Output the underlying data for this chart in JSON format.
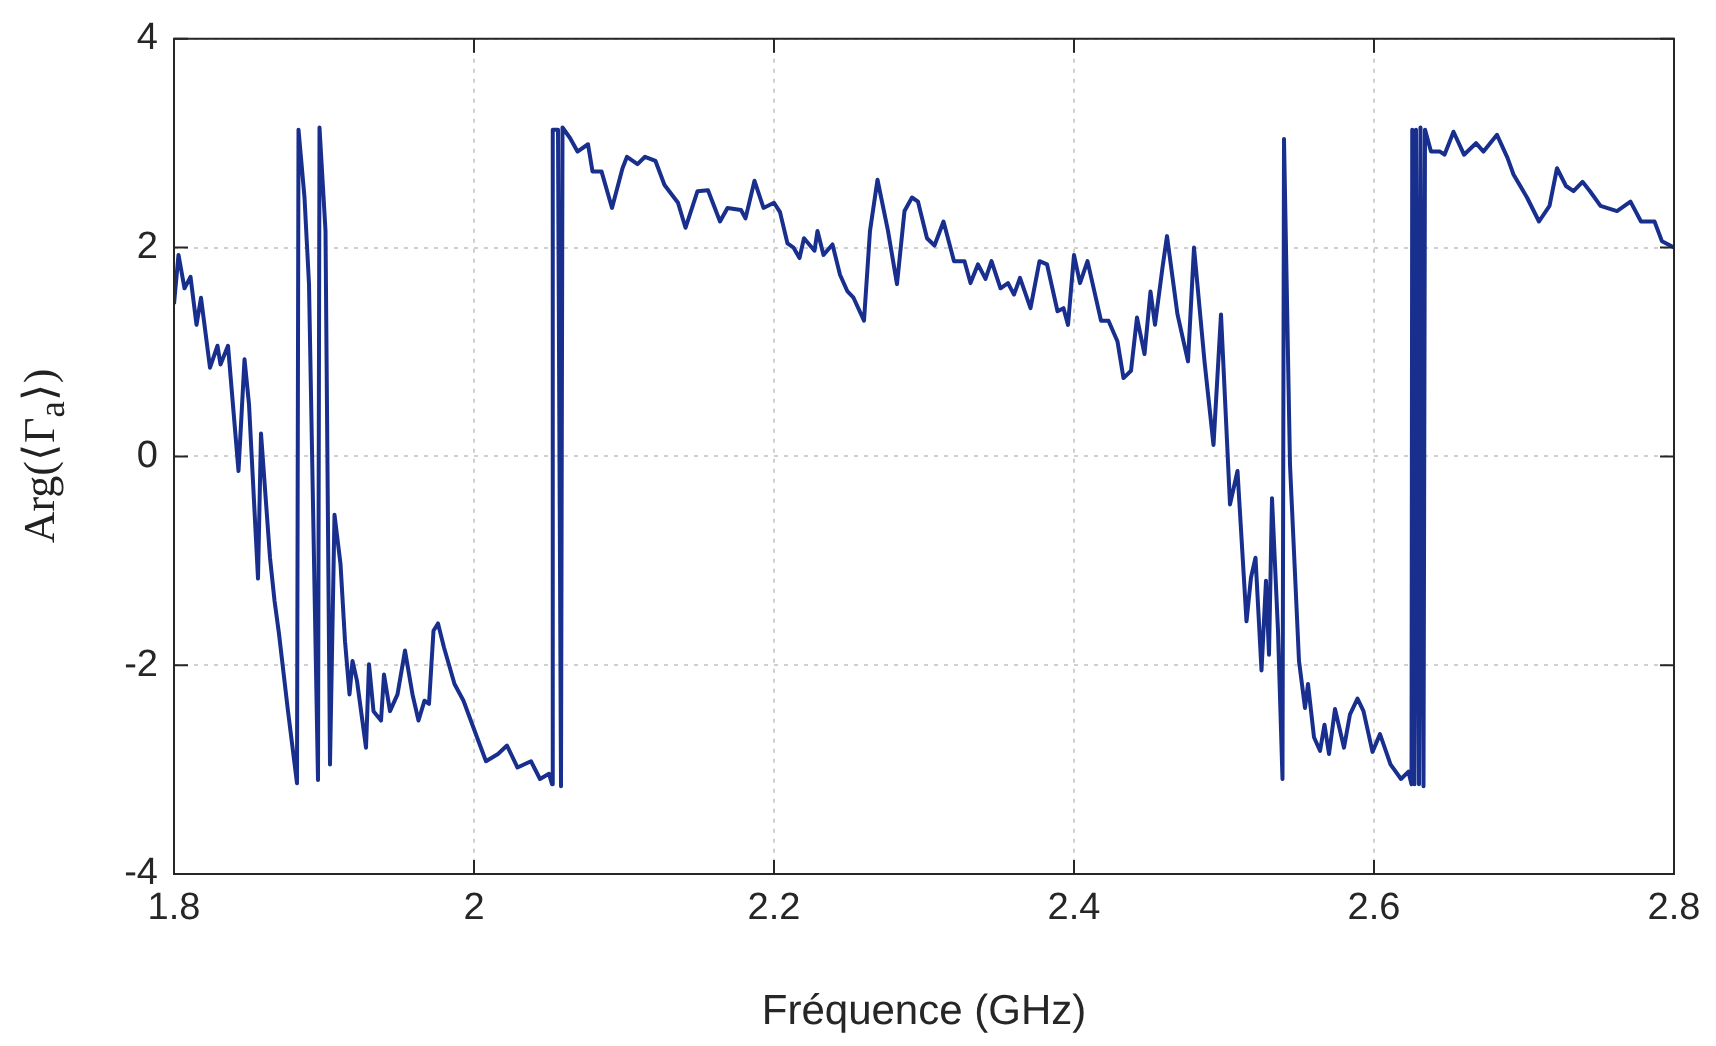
{
  "chart_data": {
    "type": "line",
    "xlabel": "Fréquence (GHz)",
    "ylabel": "Arg(⟨Γ$_{a}$⟩)",
    "xlim": [
      1.8,
      2.8
    ],
    "xticks": [
      1.8,
      2,
      2.2,
      2.4,
      2.6,
      2.8
    ],
    "ylim": [
      -4,
      4
    ],
    "yticks": [
      -4,
      -2,
      0,
      2,
      4
    ],
    "grid": true,
    "legend": false,
    "marker": "none",
    "line_style": "solid",
    "series": [
      {
        "color": "#182f8e",
        "x": [
          1.8,
          1.803,
          1.807,
          1.811,
          1.815,
          1.818,
          1.824,
          1.829,
          1.831,
          1.836,
          1.843,
          1.847,
          1.85,
          1.856,
          1.858,
          1.864,
          1.867,
          1.87,
          1.876,
          1.882,
          1.883,
          1.887,
          1.89,
          1.896,
          1.897,
          1.901,
          1.904,
          1.907,
          1.911,
          1.914,
          1.917,
          1.919,
          1.922,
          1.928,
          1.93,
          1.933,
          1.938,
          1.94,
          1.944,
          1.949,
          1.954,
          1.959,
          1.963,
          1.967,
          1.97,
          1.973,
          1.976,
          1.98,
          1.987,
          1.993,
          2.002,
          2.008,
          2.016,
          2.022,
          2.029,
          2.038,
          2.044,
          2.05,
          2.052,
          2.0525,
          2.056,
          2.058,
          2.059,
          2.064,
          2.069,
          2.076,
          2.079,
          2.085,
          2.092,
          2.099,
          2.102,
          2.109,
          2.114,
          2.121,
          2.127,
          2.136,
          2.141,
          2.144,
          2.149,
          2.156,
          2.164,
          2.169,
          2.178,
          2.181,
          2.187,
          2.193,
          2.2,
          2.204,
          2.209,
          2.213,
          2.217,
          2.22,
          2.227,
          2.229,
          2.233,
          2.239,
          2.244,
          2.249,
          2.253,
          2.26,
          2.264,
          2.269,
          2.276,
          2.282,
          2.287,
          2.292,
          2.296,
          2.302,
          2.307,
          2.313,
          2.32,
          2.327,
          2.331,
          2.336,
          2.341,
          2.345,
          2.351,
          2.356,
          2.36,
          2.364,
          2.371,
          2.377,
          2.382,
          2.389,
          2.393,
          2.396,
          2.4,
          2.404,
          2.409,
          2.418,
          2.423,
          2.429,
          2.433,
          2.438,
          2.442,
          2.447,
          2.451,
          2.454,
          2.459,
          2.462,
          2.469,
          2.476,
          2.48,
          2.487,
          2.493,
          2.498,
          2.504,
          2.509,
          2.515,
          2.518,
          2.521,
          2.525,
          2.528,
          2.53,
          2.532,
          2.536,
          2.539,
          2.54,
          2.544,
          2.55,
          2.554,
          2.556,
          2.56,
          2.564,
          2.567,
          2.57,
          2.574,
          2.58,
          2.584,
          2.589,
          2.593,
          2.599,
          2.604,
          2.611,
          2.618,
          2.623,
          2.625,
          2.6255,
          2.627,
          2.628,
          2.63,
          2.631,
          2.633,
          2.634,
          2.638,
          2.644,
          2.647,
          2.653,
          2.66,
          2.668,
          2.673,
          2.682,
          2.689,
          2.693,
          2.702,
          2.71,
          2.717,
          2.722,
          2.728,
          2.733,
          2.739,
          2.744,
          2.751,
          2.762,
          2.771,
          2.778,
          2.787,
          2.792,
          2.8
        ],
        "values": [
          1.46,
          1.93,
          1.61,
          1.72,
          1.26,
          1.52,
          0.85,
          1.06,
          0.88,
          1.06,
          -0.14,
          0.93,
          0.5,
          -1.17,
          0.22,
          -0.97,
          -1.38,
          -1.7,
          -2.44,
          -3.13,
          3.13,
          2.48,
          1.65,
          -3.1,
          3.15,
          2.16,
          -2.95,
          -0.56,
          -1.03,
          -1.77,
          -2.28,
          -1.96,
          -2.15,
          -2.79,
          -1.99,
          -2.44,
          -2.53,
          -2.09,
          -2.44,
          -2.28,
          -1.86,
          -2.28,
          -2.53,
          -2.34,
          -2.37,
          -1.67,
          -1.6,
          -1.83,
          -2.18,
          -2.34,
          -2.69,
          -2.92,
          -2.85,
          -2.77,
          -2.98,
          -2.92,
          -3.09,
          -3.04,
          -3.14,
          3.13,
          3.13,
          -3.16,
          3.15,
          3.05,
          2.92,
          2.99,
          2.73,
          2.73,
          2.38,
          2.76,
          2.87,
          2.8,
          2.87,
          2.83,
          2.6,
          2.43,
          2.19,
          2.32,
          2.54,
          2.55,
          2.25,
          2.38,
          2.36,
          2.28,
          2.64,
          2.38,
          2.43,
          2.34,
          2.04,
          2.0,
          1.9,
          2.09,
          1.97,
          2.16,
          1.93,
          2.03,
          1.74,
          1.58,
          1.52,
          1.3,
          2.16,
          2.65,
          2.16,
          1.65,
          2.35,
          2.48,
          2.44,
          2.09,
          2.02,
          2.25,
          1.87,
          1.87,
          1.66,
          1.84,
          1.7,
          1.87,
          1.61,
          1.66,
          1.55,
          1.71,
          1.42,
          1.87,
          1.84,
          1.39,
          1.42,
          1.26,
          1.93,
          1.66,
          1.87,
          1.3,
          1.3,
          1.1,
          0.75,
          0.82,
          1.33,
          0.98,
          1.58,
          1.26,
          1.81,
          2.11,
          1.36,
          0.91,
          2.0,
          0.91,
          0.11,
          1.36,
          -0.46,
          -0.14,
          -1.58,
          -1.16,
          -0.97,
          -2.05,
          -1.19,
          -1.9,
          -0.4,
          -1.67,
          -3.09,
          3.04,
          -0.08,
          -1.96,
          -2.41,
          -2.18,
          -2.69,
          -2.82,
          -2.57,
          -2.85,
          -2.42,
          -2.79,
          -2.47,
          -2.32,
          -2.44,
          -2.83,
          -2.66,
          -2.95,
          -3.09,
          -3.02,
          -3.14,
          3.13,
          -3.14,
          3.13,
          -3.14,
          3.15,
          -3.16,
          3.13,
          2.92,
          2.92,
          2.89,
          3.11,
          2.89,
          3.0,
          2.92,
          3.08,
          2.86,
          2.7,
          2.48,
          2.25,
          2.4,
          2.76,
          2.59,
          2.54,
          2.63,
          2.54,
          2.4,
          2.35,
          2.44,
          2.25,
          2.25,
          2.06,
          2.0
        ]
      }
    ]
  }
}
